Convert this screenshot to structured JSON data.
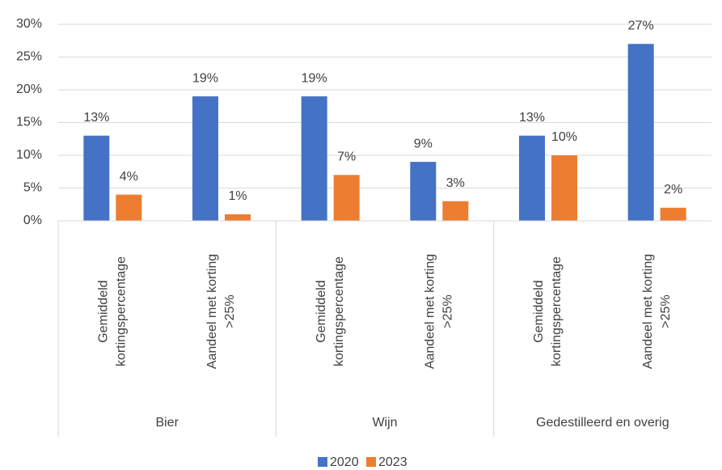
{
  "chart_data": {
    "type": "bar",
    "categories": [
      [
        "Gemiddeld",
        "kortingspercentage"
      ],
      [
        "Aandeel met korting",
        ">25%"
      ],
      [
        "Gemiddeld",
        "kortingspercentage"
      ],
      [
        "Aandeel met korting",
        ">25%"
      ],
      [
        "Gemiddeld",
        "kortingspercentage"
      ],
      [
        "Aandeel met korting",
        ">25%"
      ]
    ],
    "groups": [
      {
        "label": "Bier",
        "size": 2
      },
      {
        "label": "Wijn",
        "size": 2
      },
      {
        "label": "Gedestilleerd en overig",
        "size": 2
      }
    ],
    "series": [
      {
        "name": "2020",
        "color": "#4472c4",
        "values": [
          13,
          19,
          19,
          9,
          13,
          27
        ],
        "value_labels": [
          "13%",
          "19%",
          "19%",
          "9%",
          "13%",
          "27%"
        ]
      },
      {
        "name": "2023",
        "color": "#ed7d31",
        "values": [
          4,
          1,
          7,
          3,
          10,
          2
        ],
        "value_labels": [
          "4%",
          "1%",
          "7%",
          "3%",
          "10%",
          "2%"
        ]
      }
    ],
    "ylim": [
      0,
      30
    ],
    "yticks": [
      {
        "value": 0,
        "label": "0%"
      },
      {
        "value": 5,
        "label": "5%"
      },
      {
        "value": 10,
        "label": "10%"
      },
      {
        "value": 15,
        "label": "15%"
      },
      {
        "value": 20,
        "label": "20%"
      },
      {
        "value": 25,
        "label": "25%"
      },
      {
        "value": 30,
        "label": "30%"
      }
    ],
    "grid": true,
    "legend": "bottom"
  }
}
